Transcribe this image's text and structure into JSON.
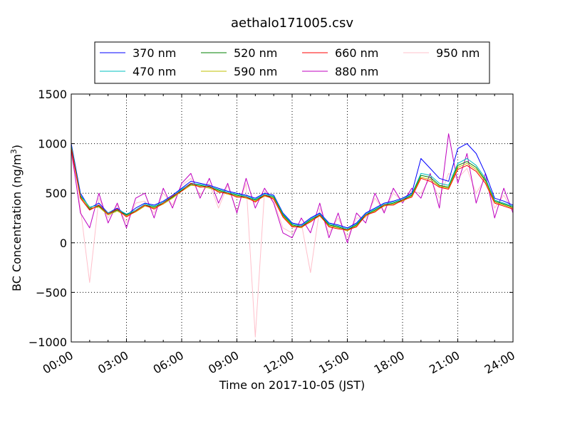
{
  "chart_data": {
    "type": "line",
    "title": "aethalo171005.csv",
    "xlabel": "Time on 2017-10-05 (JST)",
    "ylabel_main": "BC Concentration (ng/m",
    "ylabel_sup": "3",
    "ylabel_close": ")",
    "xlim": [
      "00:00",
      "24:00"
    ],
    "ylim": [
      -1000,
      1500
    ],
    "grid": true,
    "legend_position": "top-center",
    "x_ticks": [
      "00:00",
      "03:00",
      "06:00",
      "09:00",
      "12:00",
      "15:00",
      "18:00",
      "21:00",
      "24:00"
    ],
    "y_ticks": [
      "1500",
      "1000",
      "500",
      "0",
      "−500",
      "−1000"
    ],
    "x_tick_hours": [
      0,
      3,
      6,
      9,
      12,
      15,
      18,
      21,
      24
    ],
    "y_tick_values": [
      1500,
      1000,
      500,
      0,
      -500,
      -1000
    ],
    "x_hours": [
      0,
      0.5,
      1,
      1.5,
      2,
      2.5,
      3,
      3.5,
      4,
      4.5,
      5,
      5.5,
      6,
      6.5,
      7,
      7.5,
      8,
      8.5,
      9,
      9.5,
      10,
      10.5,
      11,
      11.5,
      12,
      12.5,
      13,
      13.5,
      14,
      14.5,
      15,
      15.5,
      16,
      16.5,
      17,
      17.5,
      18,
      18.5,
      19,
      19.5,
      20,
      20.5,
      21,
      21.5,
      22,
      22.5,
      23,
      23.5,
      24
    ],
    "series": [
      {
        "name": "370 nm",
        "color": "#0000ff",
        "values": [
          1000,
          500,
          350,
          400,
          300,
          350,
          280,
          350,
          400,
          380,
          420,
          480,
          550,
          620,
          600,
          580,
          550,
          520,
          500,
          480,
          450,
          500,
          480,
          300,
          200,
          180,
          250,
          300,
          200,
          180,
          150,
          200,
          300,
          350,
          400,
          420,
          450,
          500,
          850,
          750,
          650,
          620,
          950,
          1000,
          900,
          700,
          450,
          420,
          380
        ]
      },
      {
        "name": "470 nm",
        "color": "#00bfbf",
        "values": [
          980,
          480,
          360,
          380,
          300,
          340,
          290,
          330,
          390,
          370,
          410,
          470,
          540,
          600,
          590,
          570,
          540,
          510,
          490,
          470,
          440,
          490,
          470,
          290,
          190,
          170,
          240,
          290,
          190,
          170,
          140,
          190,
          290,
          340,
          390,
          410,
          440,
          490,
          700,
          680,
          600,
          580,
          800,
          850,
          780,
          650,
          430,
          400,
          370
        ]
      },
      {
        "name": "520 nm",
        "color": "#008000",
        "values": [
          970,
          470,
          340,
          370,
          290,
          330,
          280,
          320,
          380,
          360,
          400,
          460,
          530,
          590,
          580,
          560,
          530,
          500,
          480,
          460,
          430,
          480,
          460,
          280,
          180,
          160,
          230,
          280,
          180,
          160,
          130,
          180,
          280,
          330,
          380,
          400,
          430,
          480,
          680,
          660,
          580,
          560,
          780,
          820,
          760,
          630,
          420,
          390,
          360
        ]
      },
      {
        "name": "590 nm",
        "color": "#bfbf00",
        "values": [
          960,
          460,
          350,
          360,
          280,
          320,
          270,
          310,
          370,
          350,
          390,
          450,
          520,
          580,
          570,
          550,
          520,
          490,
          470,
          450,
          420,
          470,
          450,
          270,
          170,
          150,
          220,
          270,
          170,
          150,
          120,
          170,
          270,
          320,
          370,
          390,
          420,
          470,
          660,
          640,
          570,
          550,
          760,
          800,
          740,
          620,
          410,
          380,
          350
        ]
      },
      {
        "name": "660 nm",
        "color": "#ff0000",
        "values": [
          950,
          450,
          330,
          380,
          290,
          340,
          260,
          320,
          380,
          340,
          400,
          470,
          520,
          600,
          560,
          570,
          510,
          500,
          460,
          460,
          410,
          480,
          440,
          260,
          160,
          160,
          210,
          280,
          160,
          140,
          130,
          160,
          280,
          310,
          380,
          380,
          430,
          460,
          650,
          620,
          560,
          540,
          740,
          780,
          720,
          600,
          400,
          370,
          340
        ]
      },
      {
        "name": "880 nm",
        "color": "#bf00bf",
        "values": [
          940,
          300,
          150,
          500,
          200,
          400,
          150,
          450,
          500,
          250,
          550,
          350,
          600,
          700,
          450,
          650,
          400,
          600,
          300,
          650,
          350,
          550,
          400,
          100,
          50,
          250,
          100,
          400,
          50,
          300,
          0,
          300,
          200,
          500,
          300,
          550,
          400,
          550,
          450,
          700,
          350,
          1100,
          600,
          900,
          400,
          700,
          250,
          550,
          300
        ]
      },
      {
        "name": "950 nm",
        "color": "#ffc0cb",
        "values": [
          900,
          350,
          -400,
          450,
          250,
          380,
          200,
          400,
          420,
          300,
          500,
          380,
          580,
          650,
          480,
          600,
          350,
          580,
          320,
          600,
          -950,
          520,
          420,
          150,
          100,
          200,
          -300,
          350,
          100,
          250,
          50,
          250,
          250,
          450,
          320,
          500,
          420,
          520,
          500,
          650,
          450,
          700,
          650,
          750,
          500,
          650,
          350,
          480,
          320
        ]
      }
    ]
  }
}
